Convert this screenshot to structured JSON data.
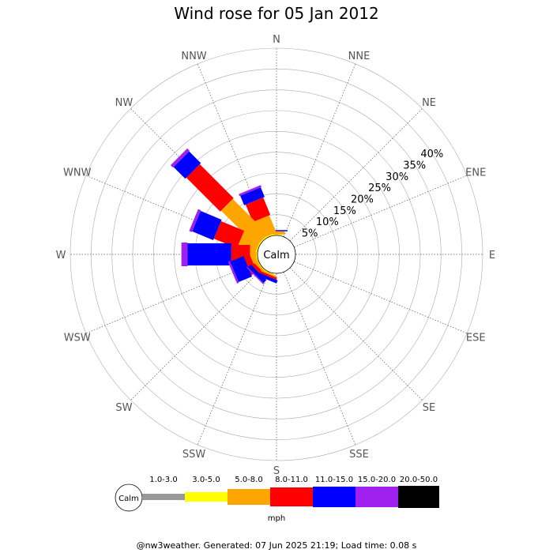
{
  "chart_data": {
    "type": "windrose",
    "title": "Wind rose for 05 Jan 2012",
    "directions": [
      "N",
      "NNE",
      "NE",
      "ENE",
      "E",
      "ESE",
      "SE",
      "SSE",
      "S",
      "SSW",
      "SW",
      "WSW",
      "W",
      "WNW",
      "NW",
      "NNW"
    ],
    "radial_ticks": [
      "5%",
      "10%",
      "15%",
      "20%",
      "25%",
      "30%",
      "35%",
      "40%"
    ],
    "radial_max": 45,
    "calm_label": "Calm",
    "speed_unit": "mph",
    "speed_bins": [
      {
        "label": "1.0-3.0",
        "color": "#999999"
      },
      {
        "label": "3.0-5.0",
        "color": "#ffff00"
      },
      {
        "label": "5.0-8.0",
        "color": "#ffa500"
      },
      {
        "label": "8.0-11.0",
        "color": "#ff0000"
      },
      {
        "label": "11.0-15.0",
        "color": "#0000ff"
      },
      {
        "label": "15.0-20.0",
        "color": "#a020f0"
      },
      {
        "label": "20.0-50.0",
        "color": "#000000"
      }
    ],
    "series": [
      {
        "direction": "N",
        "values": [
          0,
          0.2,
          0.8,
          0,
          0.3,
          0,
          0
        ]
      },
      {
        "direction": "NNW",
        "values": [
          0,
          0.3,
          4.5,
          4.5,
          2.5,
          0.5,
          0
        ]
      },
      {
        "direction": "NW",
        "values": [
          0,
          0.3,
          12.0,
          11.5,
          4.0,
          0.8,
          0
        ]
      },
      {
        "direction": "WNW",
        "values": [
          0,
          0.3,
          4.5,
          6.0,
          5.5,
          0.7,
          0
        ]
      },
      {
        "direction": "W",
        "values": [
          0,
          0.3,
          1.5,
          4.5,
          10.5,
          1.5,
          0
        ]
      },
      {
        "direction": "WSW",
        "values": [
          0,
          0.2,
          1.2,
          1.5,
          3.5,
          0.5,
          0
        ]
      },
      {
        "direction": "SW",
        "values": [
          0,
          0.2,
          0.5,
          0.8,
          1.0,
          0.3,
          0
        ]
      },
      {
        "direction": "SSW",
        "values": [
          0,
          0.2,
          0.4,
          0.5,
          0.8,
          0,
          0
        ]
      },
      {
        "direction": "S",
        "values": [
          0,
          0,
          0,
          0,
          0,
          0,
          0
        ]
      },
      {
        "direction": "ENE",
        "values": [
          0,
          0,
          0,
          0,
          0,
          0,
          0
        ]
      },
      {
        "direction": "NNE",
        "values": [
          0,
          0,
          0,
          0,
          0,
          0,
          0
        ]
      }
    ]
  },
  "footer": "@nw3weather. Generated: 07 Jun 2025 21:19; Load time: 0.08 s"
}
